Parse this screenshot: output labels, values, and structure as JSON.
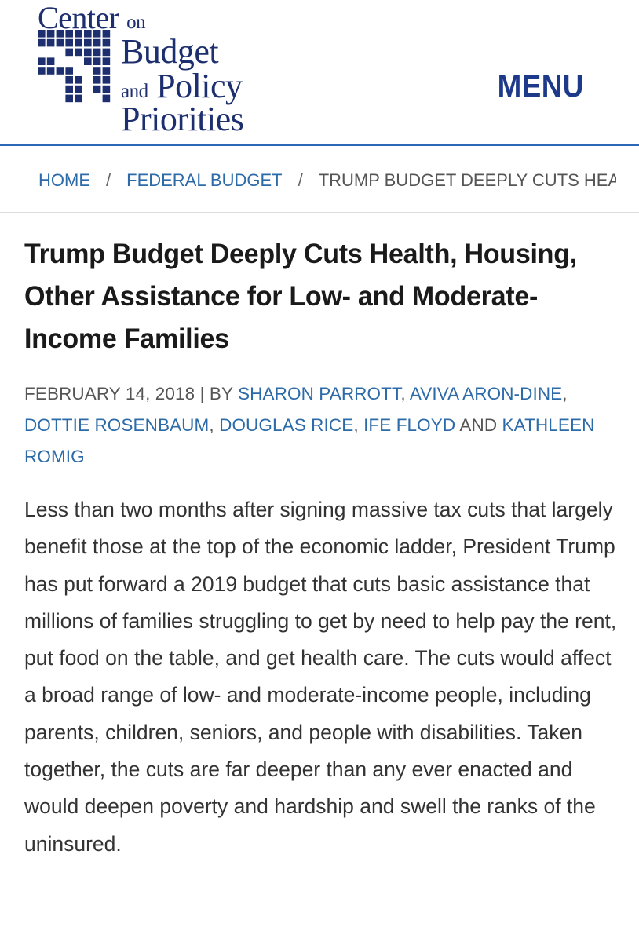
{
  "header": {
    "logo": {
      "line1_main": "Center",
      "line1_small": "on",
      "line2": "Budget",
      "line3_small": "and",
      "line3_main": "Policy",
      "line4": "Priorities"
    },
    "menu_label": "MENU",
    "colors": {
      "brand_navy": "#1d2f6f",
      "accent_blue": "#2d68b8",
      "link_blue": "#2c6aa8"
    }
  },
  "breadcrumb": {
    "items": [
      {
        "label": "HOME"
      },
      {
        "label": "FEDERAL BUDGET"
      }
    ],
    "separator": "/",
    "current": "TRUMP BUDGET DEEPLY CUTS HEALTH, HOUSING, OTHER ASSISTANCE FOR LOW- AND MODERATE-INCOME FAMILIES"
  },
  "article": {
    "title": "Trump Budget Deeply Cuts Health, Housing, Other Assistance for Low- and Moderate-Income Families",
    "date": "FEBRUARY 14, 2018",
    "by_prefix": "| BY",
    "authors": [
      "SHARON PARROTT",
      "AVIVA ARON-DINE",
      "DOTTIE ROSENBAUM",
      "DOUGLAS RICE",
      "IFE FLOYD",
      "KATHLEEN ROMIG"
    ],
    "author_separator": ",",
    "author_final_conjunction": "AND",
    "body": "Less than two months after signing massive tax cuts that largely benefit those at the top of the economic ladder, President Trump has put forward a 2019 budget that cuts basic assistance that millions of families struggling to get by need to help pay the rent, put food on the table, and get health care.  The cuts would affect a broad range of low- and moderate-income people, including parents, children, seniors, and people with disabilities.  Taken together, the cuts are far deeper than any ever enacted and would deepen poverty and hardship and swell the ranks of the uninsured."
  }
}
